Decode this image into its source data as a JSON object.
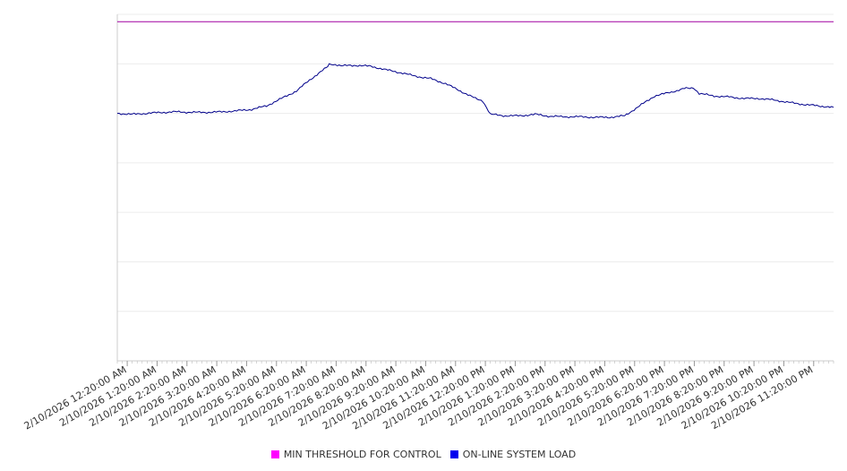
{
  "chart_data": {
    "type": "line",
    "title": "",
    "xlabel": "",
    "ylabel": "",
    "x_tick_labels": [
      "2/10/2026 12:20:00 AM",
      "2/10/2026 1:20:00 AM",
      "2/10/2026 2:20:00 AM",
      "2/10/2026 3:20:00 AM",
      "2/10/2026 4:20:00 AM",
      "2/10/2026 5:20:00 AM",
      "2/10/2026 6:20:00 AM",
      "2/10/2026 7:20:00 AM",
      "2/10/2026 8:20:00 AM",
      "2/10/2026 9:20:00 AM",
      "2/10/2026 10:20:00 AM",
      "2/10/2026 11:20:00 AM",
      "2/10/2026 12:20:00 PM",
      "2/10/2026 1:20:00 PM",
      "2/10/2026 2:20:00 PM",
      "2/10/2026 3:20:00 PM",
      "2/10/2026 4:20:00 PM",
      "2/10/2026 5:20:00 PM",
      "2/10/2026 6:20:00 PM",
      "2/10/2026 7:20:00 PM",
      "2/10/2026 8:20:00 PM",
      "2/10/2026 9:20:00 PM",
      "2/10/2026 10:20:00 PM",
      "2/10/2026 11:20:00 PM"
    ],
    "ylim": [
      0,
      7
    ],
    "y_gridlines": [
      1,
      2,
      3,
      4,
      5,
      6,
      7
    ],
    "y_tick_labels_shown": false,
    "grid": true,
    "legend_position": "bottom",
    "series": [
      {
        "name": "MIN THRESHOLD FOR CONTROL",
        "color": "#ff00ff",
        "line_color": "#a000a0",
        "x": [
          0,
          24
        ],
        "values": [
          6.85,
          6.85
        ]
      },
      {
        "name": "ON-LINE SYSTEM LOAD",
        "color": "#0000ee",
        "line_color": "#00008b",
        "x": [
          0,
          0.5,
          1,
          1.5,
          2,
          2.5,
          3,
          3.5,
          4,
          4.5,
          5,
          5.5,
          6,
          6.5,
          7,
          7.1,
          7.5,
          8,
          8.5,
          9,
          9.5,
          10,
          10.5,
          11,
          11.5,
          12,
          12.25,
          12.5,
          13,
          13.5,
          14,
          14.5,
          15,
          15.5,
          16,
          16.5,
          17,
          17.5,
          18,
          18.5,
          19,
          19.3,
          19.5,
          20,
          20.5,
          21,
          21.5,
          22,
          22.5,
          23,
          23.5,
          24
        ],
        "values": [
          5.0,
          4.98,
          5.0,
          5.02,
          5.03,
          5.02,
          5.02,
          5.03,
          5.05,
          5.08,
          5.15,
          5.3,
          5.45,
          5.7,
          5.92,
          6.0,
          5.96,
          5.97,
          5.95,
          5.88,
          5.82,
          5.75,
          5.7,
          5.6,
          5.45,
          5.3,
          5.25,
          4.98,
          4.95,
          4.95,
          4.98,
          4.94,
          4.93,
          4.93,
          4.92,
          4.92,
          4.95,
          5.15,
          5.35,
          5.42,
          5.5,
          5.52,
          5.4,
          5.35,
          5.33,
          5.3,
          5.3,
          5.27,
          5.22,
          5.18,
          5.15,
          5.12
        ]
      }
    ]
  }
}
